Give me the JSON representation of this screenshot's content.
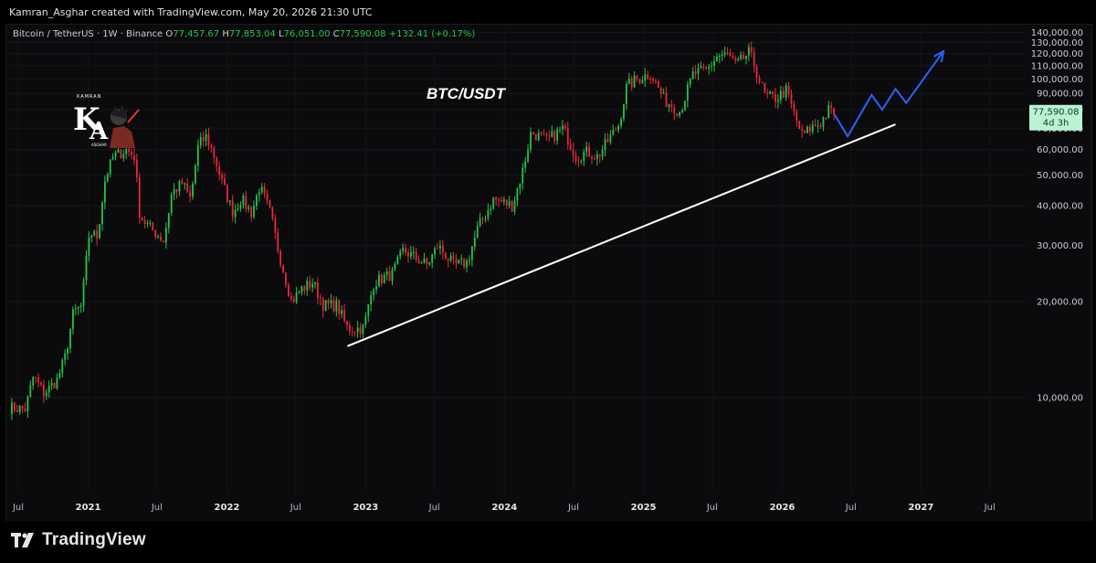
{
  "header": {
    "credit": "Kamran_Asghar created with TradingView.com, May 20, 2026 21:30 UTC"
  },
  "legend": {
    "symbol": "Bitcoin / TetherUS · 1W · Binance",
    "o_label": "O",
    "o_value": "77,457.67",
    "h_label": "H",
    "h_value": "77,853.04",
    "l_label": "L",
    "l_value": "76,051.00",
    "c_label": "C",
    "c_value": "77,590.08",
    "change": "+132.41 (+0.17%)"
  },
  "footer": {
    "brand": "TradingView"
  },
  "colors": {
    "up": "#27c34a",
    "down": "#e8283a",
    "projection": "#2962ff",
    "trendline": "#ffffff",
    "price_label_bg": "#b9f3d4"
  },
  "chart_data": {
    "type": "candlestick",
    "title": "BTC/USDT",
    "price_label": {
      "value": "77,590.08",
      "countdown": "4d 3h"
    },
    "y_axis": {
      "ylim": [
        5000,
        145000
      ],
      "ticks": [
        "10,000.00",
        "20,000.00",
        "30,000.00",
        "40,000.00",
        "50,000.00",
        "60,000.00",
        "70,000.00",
        "80,000.00",
        "90,000.00",
        "100,000.00",
        "110,000.00",
        "120,000.00",
        "130,000.00",
        "140,000.00"
      ],
      "tick_values": [
        10000,
        20000,
        30000,
        40000,
        50000,
        60000,
        70000,
        80000,
        90000,
        100000,
        110000,
        120000,
        130000,
        140000
      ]
    },
    "x_axis": {
      "xlim": [
        "2020-06-07",
        "2027-10-01"
      ],
      "ticks": [
        {
          "label": "Jul",
          "date": "2020-07-01",
          "bold": false
        },
        {
          "label": "2021",
          "date": "2021-01-01",
          "bold": true
        },
        {
          "label": "Jul",
          "date": "2021-07-01",
          "bold": false
        },
        {
          "label": "2022",
          "date": "2022-01-01",
          "bold": true
        },
        {
          "label": "Jul",
          "date": "2022-07-01",
          "bold": false
        },
        {
          "label": "2023",
          "date": "2023-01-01",
          "bold": true
        },
        {
          "label": "Jul",
          "date": "2023-07-01",
          "bold": false
        },
        {
          "label": "2024",
          "date": "2024-01-01",
          "bold": true
        },
        {
          "label": "Jul",
          "date": "2024-07-01",
          "bold": false
        },
        {
          "label": "2025",
          "date": "2025-01-01",
          "bold": true
        },
        {
          "label": "Jul",
          "date": "2025-07-01",
          "bold": false
        },
        {
          "label": "2026",
          "date": "2026-01-01",
          "bold": true
        },
        {
          "label": "Jul",
          "date": "2026-07-01",
          "bold": false
        },
        {
          "label": "2027",
          "date": "2027-01-01",
          "bold": true
        },
        {
          "label": "Jul",
          "date": "2027-07-01",
          "bold": false
        }
      ]
    },
    "price_path": [
      [
        "2020-06-07",
        9300
      ],
      [
        "2020-07-20",
        9200
      ],
      [
        "2020-08-10",
        11700
      ],
      [
        "2020-09-07",
        10300
      ],
      [
        "2020-10-12",
        11400
      ],
      [
        "2020-11-02",
        13500
      ],
      [
        "2020-11-23",
        18500
      ],
      [
        "2020-12-14",
        19300
      ],
      [
        "2021-01-04",
        33000
      ],
      [
        "2021-01-25",
        32000
      ],
      [
        "2021-02-15",
        49000
      ],
      [
        "2021-03-08",
        57000
      ],
      [
        "2021-04-12",
        60000
      ],
      [
        "2021-05-03",
        57000
      ],
      [
        "2021-05-17",
        37000
      ],
      [
        "2021-06-14",
        34000
      ],
      [
        "2021-07-19",
        31000
      ],
      [
        "2021-08-09",
        44000
      ],
      [
        "2021-09-06",
        47000
      ],
      [
        "2021-09-27",
        42000
      ],
      [
        "2021-10-18",
        62000
      ],
      [
        "2021-11-08",
        66000
      ],
      [
        "2021-11-29",
        57000
      ],
      [
        "2021-12-20",
        47000
      ],
      [
        "2022-01-17",
        38000
      ],
      [
        "2022-02-07",
        42000
      ],
      [
        "2022-03-07",
        38000
      ],
      [
        "2022-03-28",
        46000
      ],
      [
        "2022-04-25",
        38000
      ],
      [
        "2022-05-16",
        29000
      ],
      [
        "2022-06-20",
        20000
      ],
      [
        "2022-07-18",
        22000
      ],
      [
        "2022-08-15",
        23000
      ],
      [
        "2022-09-12",
        19500
      ],
      [
        "2022-10-17",
        19500
      ],
      [
        "2022-11-14",
        16500
      ],
      [
        "2022-12-26",
        16500
      ],
      [
        "2023-01-23",
        23000
      ],
      [
        "2023-03-13",
        24500
      ],
      [
        "2023-04-10",
        29000
      ],
      [
        "2023-06-12",
        26000
      ],
      [
        "2023-07-10",
        30000
      ],
      [
        "2023-08-21",
        26000
      ],
      [
        "2023-09-25",
        26500
      ],
      [
        "2023-10-23",
        34000
      ],
      [
        "2023-12-04",
        42000
      ],
      [
        "2024-01-22",
        40000
      ],
      [
        "2024-02-19",
        52000
      ],
      [
        "2024-03-11",
        68000
      ],
      [
        "2024-04-22",
        64000
      ],
      [
        "2024-06-03",
        70000
      ],
      [
        "2024-07-08",
        57000
      ],
      [
        "2024-08-05",
        59000
      ],
      [
        "2024-09-02",
        57000
      ],
      [
        "2024-09-30",
        64000
      ],
      [
        "2024-10-28",
        72000
      ],
      [
        "2024-11-18",
        95000
      ],
      [
        "2024-12-16",
        100000
      ],
      [
        "2025-01-20",
        104000
      ],
      [
        "2025-02-24",
        86000
      ],
      [
        "2025-04-07",
        79000
      ],
      [
        "2025-05-12",
        104000
      ],
      [
        "2025-06-16",
        106000
      ],
      [
        "2025-07-14",
        118000
      ],
      [
        "2025-08-11",
        119000
      ],
      [
        "2025-09-01",
        110000
      ],
      [
        "2025-10-06",
        121000
      ],
      [
        "2025-10-20",
        110000
      ],
      [
        "2025-11-17",
        88000
      ],
      [
        "2025-12-15",
        87000
      ],
      [
        "2026-01-12",
        92000
      ],
      [
        "2026-02-02",
        77000
      ],
      [
        "2026-02-23",
        66000
      ],
      [
        "2026-03-16",
        70000
      ],
      [
        "2026-04-13",
        73000
      ],
      [
        "2026-05-04",
        80000
      ],
      [
        "2026-05-18",
        77590
      ]
    ],
    "trendline": [
      [
        "2022-11-14",
        14500
      ],
      [
        "2026-10-26",
        72000
      ]
    ],
    "projection": [
      [
        "2026-05-18",
        77500
      ],
      [
        "2026-06-22",
        66000
      ],
      [
        "2026-08-24",
        89000
      ],
      [
        "2026-09-21",
        80000
      ],
      [
        "2026-10-26",
        93000
      ],
      [
        "2026-11-23",
        84000
      ],
      [
        "2027-03-01",
        122000
      ]
    ]
  }
}
